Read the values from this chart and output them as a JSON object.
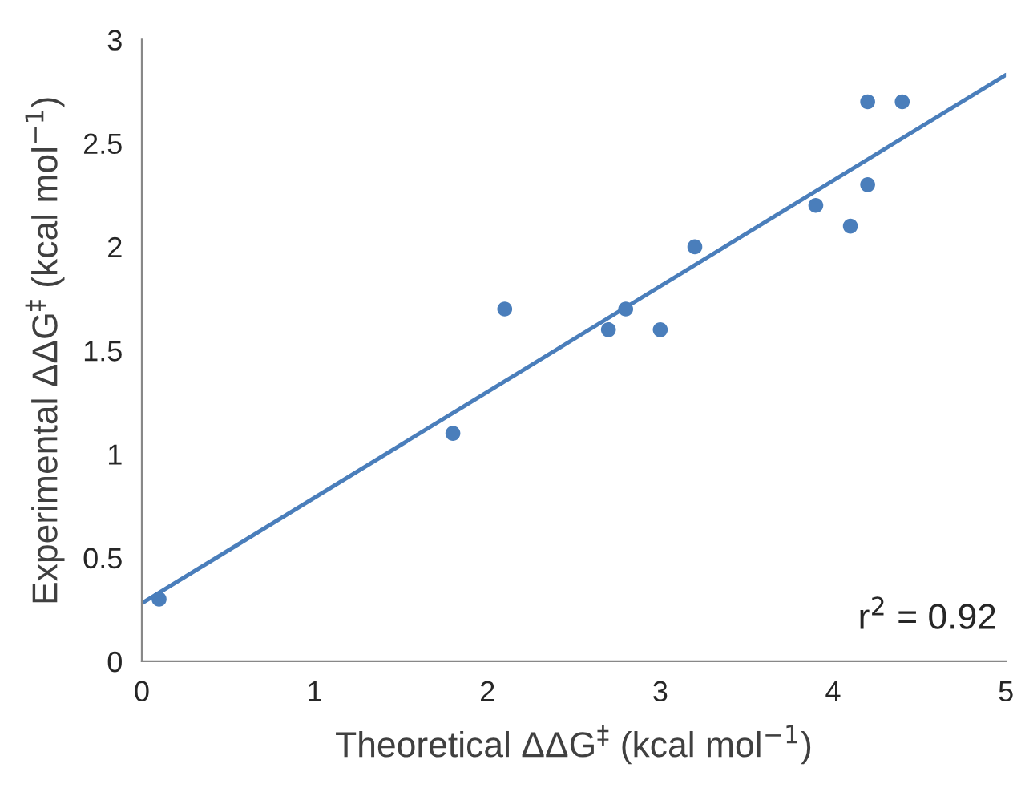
{
  "chart_data": {
    "type": "scatter",
    "xlabel": "Theoretical ΔΔG$^{‡}$ (kcal mol$^{−1}$)",
    "ylabel": "Experimental ΔΔG$^{‡}$ (kcal mol$^{−1}$)",
    "series": [
      {
        "color": "#4a7ebb",
        "x": [
          0.1,
          1.8,
          2.1,
          2.7,
          2.8,
          3.0,
          3.2,
          3.9,
          4.1,
          4.2,
          4.2,
          4.4
        ],
        "values": [
          0.3,
          1.1,
          1.7,
          1.6,
          1.7,
          1.6,
          2.0,
          2.2,
          2.1,
          2.3,
          2.7,
          2.7
        ]
      },
      {
        "type": "line",
        "color": "#4a7ebb",
        "x": [
          0,
          5
        ],
        "values": [
          0.28,
          2.83
        ]
      }
    ],
    "xlim": [
      0,
      5
    ],
    "ylim": [
      0,
      3
    ],
    "xticks": [
      0,
      1,
      2,
      3,
      4,
      5
    ],
    "yticks": [
      0,
      0.5,
      1,
      1.5,
      2,
      2.5,
      3
    ],
    "annotations": [
      "r$^{2}$ = 0.92"
    ],
    "grid": false,
    "legend": false
  }
}
